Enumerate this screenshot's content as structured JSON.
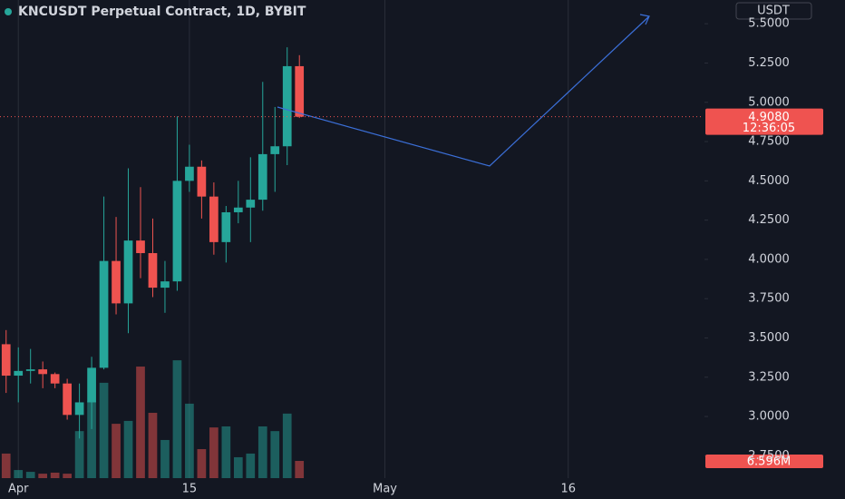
{
  "chart_data": {
    "type": "candlestick",
    "title": "KNCUSDT Perpetual Contract, 1D, BYBIT",
    "currency": "USDT",
    "up_color": "#26a69a",
    "down_color": "#ef5350",
    "x": [
      -1,
      0,
      1,
      2,
      3,
      4,
      5,
      6,
      7,
      8,
      9,
      10,
      11,
      12,
      13,
      14,
      15,
      16,
      17,
      18,
      19,
      20,
      21,
      22,
      23
    ],
    "open": [
      3.46,
      3.26,
      3.29,
      3.3,
      3.27,
      3.21,
      3.01,
      3.09,
      3.31,
      3.99,
      3.72,
      4.12,
      4.04,
      3.82,
      3.86,
      4.5,
      4.59,
      4.4,
      4.11,
      4.3,
      4.33,
      4.38,
      4.67,
      4.72,
      5.23
    ],
    "high": [
      3.55,
      3.44,
      3.43,
      3.35,
      3.28,
      3.24,
      3.21,
      3.38,
      4.4,
      4.27,
      4.58,
      4.46,
      4.26,
      3.99,
      4.91,
      4.73,
      4.63,
      4.49,
      4.34,
      4.5,
      4.65,
      5.13,
      4.97,
      5.35,
      5.3
    ],
    "low": [
      3.15,
      3.09,
      3.21,
      3.18,
      3.18,
      2.98,
      2.86,
      2.92,
      3.3,
      3.65,
      3.53,
      3.88,
      3.76,
      3.66,
      3.8,
      4.43,
      4.26,
      4.03,
      3.98,
      4.23,
      4.11,
      4.31,
      4.43,
      4.6,
      4.9
    ],
    "close": [
      3.26,
      3.29,
      3.3,
      3.27,
      3.21,
      3.01,
      3.09,
      3.31,
      3.99,
      3.72,
      4.12,
      4.04,
      3.82,
      3.86,
      4.5,
      4.59,
      4.4,
      4.11,
      4.3,
      4.33,
      4.38,
      4.67,
      4.72,
      5.23,
      4.908
    ],
    "volume": {
      "values": [
        9.4,
        3.1,
        2.4,
        1.7,
        2.1,
        1.7,
        18,
        29.5,
        36.5,
        20.8,
        21.9,
        42.7,
        25,
        14.6,
        45.1,
        28.5,
        11.1,
        19.4,
        19.8,
        8,
        9.4,
        19.8,
        18,
        24.7,
        6.596
      ],
      "value_labels": [
        null,
        null,
        null,
        null,
        null,
        null,
        null,
        null,
        null,
        null,
        null,
        null,
        null,
        null,
        null,
        null,
        null,
        null,
        null,
        null,
        null,
        null,
        null,
        null,
        "6.596M"
      ],
      "vlim": [
        0,
        183
      ]
    },
    "price_label": {
      "value": 4.908,
      "label": "4.9080"
    },
    "countdown": "12:36:05",
    "xlim": [
      -1.5,
      56
    ],
    "xticks": [
      {
        "value": 0,
        "label": "Apr"
      },
      {
        "value": 14,
        "label": "15"
      },
      {
        "value": 30,
        "label": "May"
      },
      {
        "value": 45,
        "label": "16"
      }
    ],
    "ylim": [
      2.6076,
      5.6512
    ],
    "yticks": [
      {
        "value": 2.75,
        "label": "2.7500"
      },
      {
        "value": 3,
        "label": "3.0000"
      },
      {
        "value": 3.25,
        "label": "3.2500"
      },
      {
        "value": 3.5,
        "label": "3.5000"
      },
      {
        "value": 3.75,
        "label": "3.7500"
      },
      {
        "value": 4,
        "label": "4.0000"
      },
      {
        "value": 4.25,
        "label": "4.2500"
      },
      {
        "value": 4.5,
        "label": "4.5000"
      },
      {
        "value": 4.75,
        "label": "4.7500"
      },
      {
        "value": 5,
        "label": "5.0000"
      },
      {
        "value": 5.25,
        "label": "5.2500"
      },
      {
        "value": 5.5,
        "label": "5.5000"
      }
    ],
    "grid": true
  }
}
